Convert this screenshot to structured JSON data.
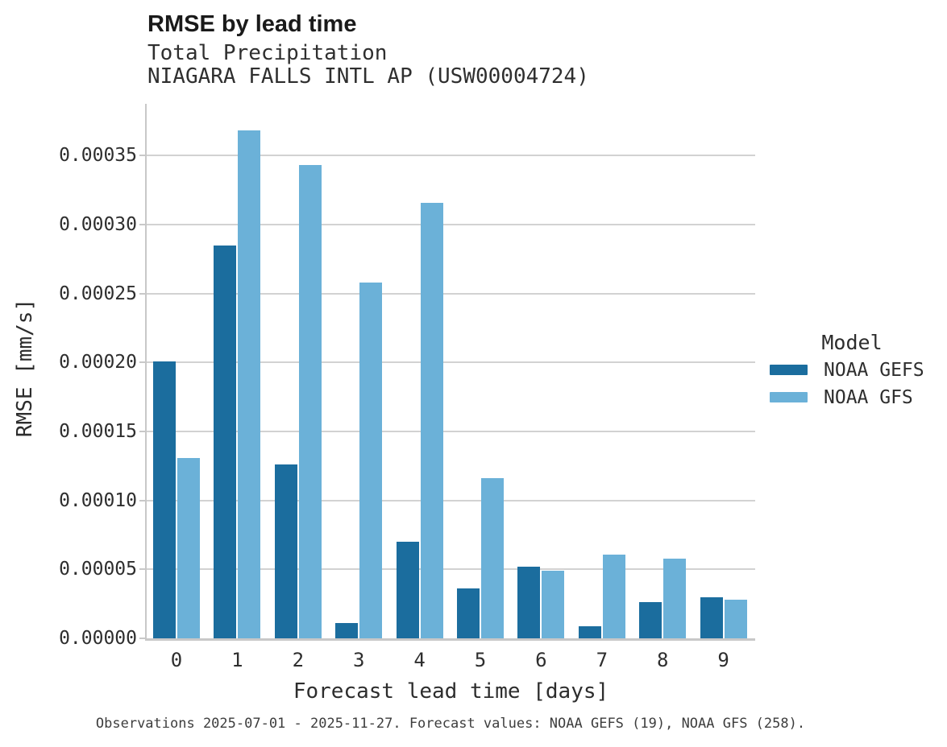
{
  "header": {
    "title": "RMSE by lead time",
    "subtitle_line1": "Total Precipitation",
    "subtitle_line2": "NIAGARA FALLS INTL AP (USW00004724)"
  },
  "legend": {
    "title": "Model",
    "entries": [
      {
        "label": "NOAA GEFS",
        "color": "#1b6d9e"
      },
      {
        "label": "NOAA GFS",
        "color": "#6bb1d8"
      }
    ]
  },
  "caption": "Observations 2025-07-01 - 2025-11-27. Forecast values: NOAA GEFS (19), NOAA GFS (258).",
  "colors": {
    "noaa_gefs": "#1b6d9e",
    "noaa_gfs": "#6bb1d8",
    "gridline": "#d2d2d2",
    "spine": "#c8c8c8"
  },
  "chart_data": {
    "type": "bar",
    "title": "RMSE by lead time",
    "subtitle": [
      "Total Precipitation",
      "NIAGARA FALLS INTL AP (USW00004724)"
    ],
    "xlabel": "Forecast lead time [days]",
    "ylabel": "RMSE [mm/s]",
    "categories": [
      "0",
      "1",
      "2",
      "3",
      "4",
      "5",
      "6",
      "7",
      "8",
      "9"
    ],
    "series": [
      {
        "name": "NOAA GEFS",
        "color": "#1b6d9e",
        "values": [
          0.000201,
          0.000285,
          0.000126,
          1.1e-05,
          7e-05,
          3.6e-05,
          5.2e-05,
          9e-06,
          2.6e-05,
          3e-05
        ]
      },
      {
        "name": "NOAA GFS",
        "color": "#6bb1d8",
        "values": [
          0.000131,
          0.000368,
          0.000343,
          0.000258,
          0.000316,
          0.000116,
          4.9e-05,
          6.1e-05,
          5.8e-05,
          2.8e-05
        ]
      }
    ],
    "ylim": [
      0,
      0.0003875
    ],
    "yticks": [
      0,
      5e-05,
      0.0001,
      0.00015,
      0.0002,
      0.00025,
      0.0003,
      0.00035
    ],
    "ytick_labels": [
      "0.00000",
      "0.00005",
      "0.00010",
      "0.00015",
      "0.00020",
      "0.00025",
      "0.00030",
      "0.00035"
    ],
    "grid": true,
    "legend_title": "Model",
    "legend_position": "center right"
  }
}
